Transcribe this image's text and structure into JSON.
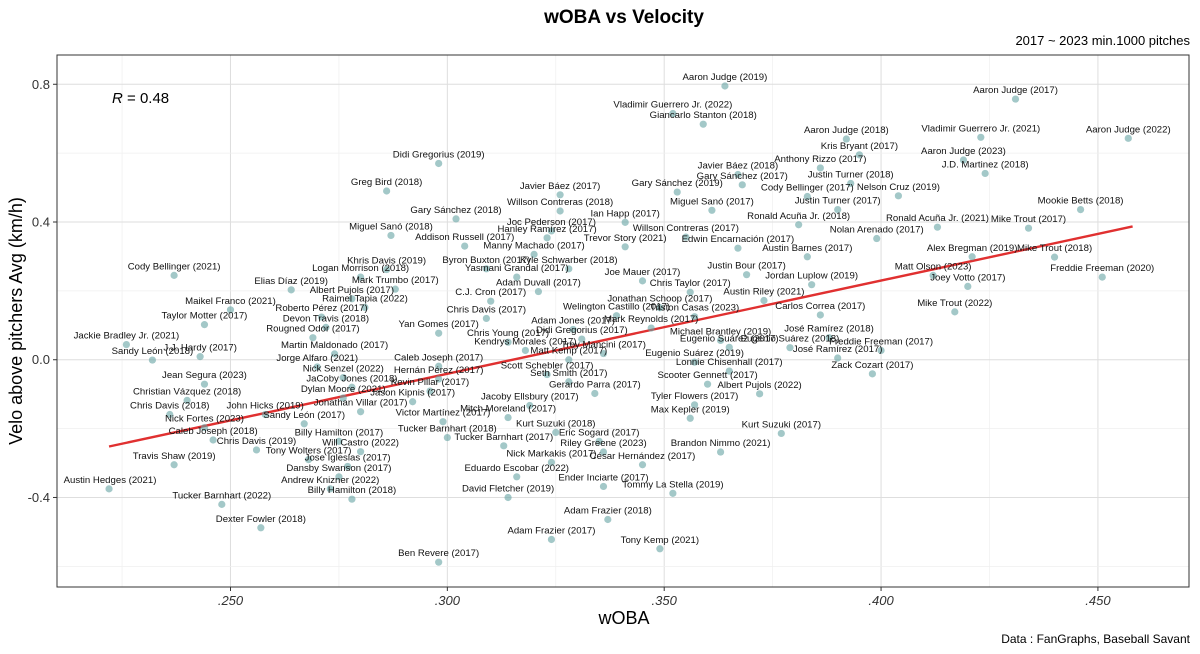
{
  "chart_data": {
    "type": "scatter",
    "title": "wOBA vs Velocity",
    "subtitle": "2017 ~ 2023 min.1000 pitches",
    "caption": "Data : FanGraphs, Baseball Savant",
    "xlabel": "wOBA",
    "ylabel": "Velo above pitchers Avg (km/h)",
    "xlim": [
      0.21,
      0.471
    ],
    "ylim": [
      -0.66,
      0.885
    ],
    "xticks": [
      0.25,
      0.3,
      0.35,
      0.4,
      0.45
    ],
    "xtick_labels": [
      ".250",
      ".300",
      ".350",
      ".400",
      ".450"
    ],
    "yticks": [
      -0.4,
      0.0,
      0.4,
      0.8
    ],
    "ytick_labels": [
      "-0.4",
      "0.0",
      "0.4",
      "0.8"
    ],
    "grid": true,
    "annotation": {
      "text": "R = 0.48",
      "r_symbol": "R",
      "r_value": " = 0.48"
    },
    "trendline": {
      "x": [
        0.222,
        0.458
      ],
      "y": [
        -0.252,
        0.387
      ],
      "color": "#e03030"
    },
    "point_color": "#66a3a3",
    "labeled_points": [
      {
        "label": "Aaron Judge (2019)",
        "x": 0.364,
        "y": 0.795
      },
      {
        "label": "Aaron Judge (2017)",
        "x": 0.431,
        "y": 0.757
      },
      {
        "label": "Vladimir Guerrero Jr. (2022)",
        "x": 0.352,
        "y": 0.715
      },
      {
        "label": "Giancarlo Stanton (2018)",
        "x": 0.359,
        "y": 0.684
      },
      {
        "label": "Aaron Judge (2018)",
        "x": 0.392,
        "y": 0.641
      },
      {
        "label": "Vladimir Guerrero Jr. (2021)",
        "x": 0.423,
        "y": 0.646
      },
      {
        "label": "Aaron Judge (2022)",
        "x": 0.457,
        "y": 0.643
      },
      {
        "label": "Kris Bryant (2017)",
        "x": 0.395,
        "y": 0.595
      },
      {
        "label": "Didi Gregorius (2019)",
        "x": 0.298,
        "y": 0.57
      },
      {
        "label": "Aaron Judge (2023)",
        "x": 0.419,
        "y": 0.58
      },
      {
        "label": "Anthony Rizzo (2017)",
        "x": 0.386,
        "y": 0.557
      },
      {
        "label": "J.D. Martinez (2018)",
        "x": 0.424,
        "y": 0.541
      },
      {
        "label": "Javier Báez (2018)",
        "x": 0.367,
        "y": 0.538
      },
      {
        "label": "Justin Turner (2018)",
        "x": 0.393,
        "y": 0.512
      },
      {
        "label": "Gary Sánchez (2017)",
        "x": 0.368,
        "y": 0.508
      },
      {
        "label": "Greg Bird (2018)",
        "x": 0.286,
        "y": 0.49
      },
      {
        "label": "Gary Sánchez (2019)",
        "x": 0.353,
        "y": 0.487
      },
      {
        "label": "Cody Bellinger (2017)",
        "x": 0.383,
        "y": 0.474
      },
      {
        "label": "Javier Báez (2017)",
        "x": 0.326,
        "y": 0.479
      },
      {
        "label": "Nelson Cruz (2019)",
        "x": 0.404,
        "y": 0.476
      },
      {
        "label": "Justin Turner (2017)",
        "x": 0.39,
        "y": 0.436
      },
      {
        "label": "Willson Contreras (2018)",
        "x": 0.326,
        "y": 0.432
      },
      {
        "label": "Miguel Sanó (2017)",
        "x": 0.361,
        "y": 0.434
      },
      {
        "label": "Mookie Betts (2018)",
        "x": 0.446,
        "y": 0.436
      },
      {
        "label": "Gary Sánchez (2018)",
        "x": 0.302,
        "y": 0.409
      },
      {
        "label": "Ian Happ (2017)",
        "x": 0.341,
        "y": 0.399
      },
      {
        "label": "Ronald Acuña Jr. (2018)",
        "x": 0.381,
        "y": 0.392
      },
      {
        "label": "Ronald Acuña Jr. (2021)",
        "x": 0.413,
        "y": 0.385
      },
      {
        "label": "Mike Trout (2017)",
        "x": 0.434,
        "y": 0.382
      },
      {
        "label": "Joc Pederson (2017)",
        "x": 0.324,
        "y": 0.374
      },
      {
        "label": "Miguel Sanó (2018)",
        "x": 0.287,
        "y": 0.361
      },
      {
        "label": "Willson Contreras (2017)",
        "x": 0.355,
        "y": 0.356
      },
      {
        "label": "Hanley Ramírez (2017)",
        "x": 0.323,
        "y": 0.354
      },
      {
        "label": "Nolan Arenado (2017)",
        "x": 0.399,
        "y": 0.352
      },
      {
        "label": "Addison Russell (2017)",
        "x": 0.304,
        "y": 0.33
      },
      {
        "label": "Trevor Story (2021)",
        "x": 0.341,
        "y": 0.328
      },
      {
        "label": "Edwin Encarnación (2017)",
        "x": 0.367,
        "y": 0.324
      },
      {
        "label": "Austin Barnes (2017)",
        "x": 0.383,
        "y": 0.299
      },
      {
        "label": "Alex Bregman (2019)",
        "x": 0.421,
        "y": 0.299
      },
      {
        "label": "Manny Machado (2017)",
        "x": 0.32,
        "y": 0.306
      },
      {
        "label": "Mike Trout (2018)",
        "x": 0.44,
        "y": 0.298
      },
      {
        "label": "Khris Davis (2019)",
        "x": 0.286,
        "y": 0.262
      },
      {
        "label": "Byron Buxton (2017)",
        "x": 0.309,
        "y": 0.264
      },
      {
        "label": "Kyle Schwarber (2018)",
        "x": 0.328,
        "y": 0.264
      },
      {
        "label": "Justin Bour (2017)",
        "x": 0.369,
        "y": 0.247
      },
      {
        "label": "Cody Bellinger (2021)",
        "x": 0.237,
        "y": 0.245
      },
      {
        "label": "Logan Morrison (2018)",
        "x": 0.28,
        "y": 0.24
      },
      {
        "label": "Yasmani Grandal (2017)",
        "x": 0.316,
        "y": 0.24
      },
      {
        "label": "Matt Olson (2023)",
        "x": 0.412,
        "y": 0.245
      },
      {
        "label": "Freddie Freeman (2020)",
        "x": 0.451,
        "y": 0.24
      },
      {
        "label": "Joe Mauer (2017)",
        "x": 0.345,
        "y": 0.229
      },
      {
        "label": "Jordan Luplow (2019)",
        "x": 0.384,
        "y": 0.218
      },
      {
        "label": "Elias Díaz (2019)",
        "x": 0.264,
        "y": 0.203
      },
      {
        "label": "Mark Trumbo (2017)",
        "x": 0.288,
        "y": 0.205
      },
      {
        "label": "Joey Votto (2017)",
        "x": 0.42,
        "y": 0.213
      },
      {
        "label": "Adam Duvall (2017)",
        "x": 0.321,
        "y": 0.198
      },
      {
        "label": "Chris Taylor (2017)",
        "x": 0.356,
        "y": 0.196
      },
      {
        "label": "Albert Pujols (2017)",
        "x": 0.278,
        "y": 0.177
      },
      {
        "label": "C.J. Cron (2017)",
        "x": 0.31,
        "y": 0.17
      },
      {
        "label": "Austin Riley (2021)",
        "x": 0.373,
        "y": 0.172
      },
      {
        "label": "Maikel Franco (2021)",
        "x": 0.25,
        "y": 0.145
      },
      {
        "label": "Raimel Tapia (2022)",
        "x": 0.281,
        "y": 0.152
      },
      {
        "label": "Jonathan Schoop (2017)",
        "x": 0.349,
        "y": 0.151
      },
      {
        "label": "Roberto Pérez (2017)",
        "x": 0.271,
        "y": 0.124
      },
      {
        "label": "Chris Davis (2017)",
        "x": 0.309,
        "y": 0.12
      },
      {
        "label": "Welington Castillo (2017)",
        "x": 0.339,
        "y": 0.128
      },
      {
        "label": "Triston Casas (2023)",
        "x": 0.357,
        "y": 0.125
      },
      {
        "label": "Carlos Correa (2017)",
        "x": 0.386,
        "y": 0.13
      },
      {
        "label": "Mike Trout (2022)",
        "x": 0.417,
        "y": 0.139
      },
      {
        "label": "Taylor Motter (2017)",
        "x": 0.244,
        "y": 0.102
      },
      {
        "label": "Devon Travis (2018)",
        "x": 0.272,
        "y": 0.094
      },
      {
        "label": "Adam Jones (2017)",
        "x": 0.329,
        "y": 0.088
      },
      {
        "label": "Mark Reynolds (2017)",
        "x": 0.347,
        "y": 0.092
      },
      {
        "label": "Yan Gomes (2017)",
        "x": 0.298,
        "y": 0.077
      },
      {
        "label": "Didi Gregorius (2017)",
        "x": 0.331,
        "y": 0.06
      },
      {
        "label": "Michael Brantley (2019)",
        "x": 0.363,
        "y": 0.056
      },
      {
        "label": "José Ramírez (2018)",
        "x": 0.388,
        "y": 0.064
      },
      {
        "label": "Rougned Odor (2017)",
        "x": 0.269,
        "y": 0.064
      },
      {
        "label": "Chris Young (2017)",
        "x": 0.314,
        "y": 0.051
      },
      {
        "label": "Jackie Bradley Jr. (2021)",
        "x": 0.226,
        "y": 0.044
      },
      {
        "label": "Eugenio Suárez (2017)",
        "x": 0.365,
        "y": 0.036
      },
      {
        "label": "Eugenio Suárez (2018)",
        "x": 0.379,
        "y": 0.035
      },
      {
        "label": "Kendrys Morales (2017)",
        "x": 0.318,
        "y": 0.027
      },
      {
        "label": "Trey Mancini (2017)",
        "x": 0.336,
        "y": 0.018
      },
      {
        "label": "Freddie Freeman (2017)",
        "x": 0.4,
        "y": 0.027
      },
      {
        "label": "Martin Maldonado (2017)",
        "x": 0.274,
        "y": 0.017
      },
      {
        "label": "J.J. Hardy (2017)",
        "x": 0.243,
        "y": 0.009
      },
      {
        "label": "José Ramírez (2017)",
        "x": 0.39,
        "y": 0.005
      },
      {
        "label": "Sandy León (2018)",
        "x": 0.232,
        "y": -0.001
      },
      {
        "label": "Matt Kemp (2017)",
        "x": 0.328,
        "y": 0.0
      },
      {
        "label": "Eugenio Suárez (2019)",
        "x": 0.357,
        "y": -0.007
      },
      {
        "label": "Jorge Alfaro (2021)",
        "x": 0.27,
        "y": -0.021
      },
      {
        "label": "Caleb Joseph (2017)",
        "x": 0.298,
        "y": -0.019
      },
      {
        "label": "Lonnie Chisenhall (2017)",
        "x": 0.365,
        "y": -0.033
      },
      {
        "label": "Zack Cozart (2017)",
        "x": 0.398,
        "y": -0.041
      },
      {
        "label": "Scott Schebler (2017)",
        "x": 0.323,
        "y": -0.043
      },
      {
        "label": "Nick Senzel (2022)",
        "x": 0.276,
        "y": -0.052
      },
      {
        "label": "Hernán Pérez (2017)",
        "x": 0.298,
        "y": -0.056
      },
      {
        "label": "Seth Smith (2017)",
        "x": 0.328,
        "y": -0.064
      },
      {
        "label": "Scooter Gennett (2017)",
        "x": 0.36,
        "y": -0.071
      },
      {
        "label": "Jean Segura (2023)",
        "x": 0.244,
        "y": -0.071
      },
      {
        "label": "JaCoby Jones (2018)",
        "x": 0.278,
        "y": -0.08
      },
      {
        "label": "Kevin Pillar (2017)",
        "x": 0.296,
        "y": -0.091
      },
      {
        "label": "Gerardo Parra (2017)",
        "x": 0.334,
        "y": -0.098
      },
      {
        "label": "Albert Pujols (2022)",
        "x": 0.372,
        "y": -0.099
      },
      {
        "label": "Dylan Moore (2021)",
        "x": 0.276,
        "y": -0.111
      },
      {
        "label": "Christian Vázquez (2018)",
        "x": 0.24,
        "y": -0.118
      },
      {
        "label": "Jason Kipnis (2017)",
        "x": 0.292,
        "y": -0.122
      },
      {
        "label": "Jacoby Ellsbury (2017)",
        "x": 0.319,
        "y": -0.133
      },
      {
        "label": "Tyler Flowers (2017)",
        "x": 0.357,
        "y": -0.131
      },
      {
        "label": "Jonathan Villar (2017)",
        "x": 0.28,
        "y": -0.151
      },
      {
        "label": "Chris Davis (2018)",
        "x": 0.236,
        "y": -0.159
      },
      {
        "label": "John Hicks (2019)",
        "x": 0.258,
        "y": -0.159
      },
      {
        "label": "Mitch Moreland (2017)",
        "x": 0.314,
        "y": -0.168
      },
      {
        "label": "Max Kepler (2019)",
        "x": 0.356,
        "y": -0.17
      },
      {
        "label": "Victor Martínez (2017)",
        "x": 0.299,
        "y": -0.18
      },
      {
        "label": "Sandy León (2017)",
        "x": 0.267,
        "y": -0.186
      },
      {
        "label": "Nick Fortes (2023)",
        "x": 0.244,
        "y": -0.197
      },
      {
        "label": "Kurt Suzuki (2018)",
        "x": 0.325,
        "y": -0.211
      },
      {
        "label": "Kurt Suzuki (2017)",
        "x": 0.377,
        "y": -0.214
      },
      {
        "label": "Tucker Barnhart (2018)",
        "x": 0.3,
        "y": -0.226
      },
      {
        "label": "Caleb Joseph (2018)",
        "x": 0.246,
        "y": -0.233
      },
      {
        "label": "Billy Hamilton (2017)",
        "x": 0.275,
        "y": -0.237
      },
      {
        "label": "Eric Sogard (2017)",
        "x": 0.335,
        "y": -0.237
      },
      {
        "label": "Tucker Barnhart (2017)",
        "x": 0.313,
        "y": -0.25
      },
      {
        "label": "Chris Davis (2019)",
        "x": 0.256,
        "y": -0.262
      },
      {
        "label": "Will Castro (2022)",
        "x": 0.28,
        "y": -0.267
      },
      {
        "label": "Riley Greene (2023)",
        "x": 0.336,
        "y": -0.268
      },
      {
        "label": "Brandon Nimmo (2021)",
        "x": 0.363,
        "y": -0.268
      },
      {
        "label": "Tony Wolters (2017)",
        "x": 0.268,
        "y": -0.29
      },
      {
        "label": "Nick Markakis (2017)",
        "x": 0.324,
        "y": -0.298
      },
      {
        "label": "César Hernández (2017)",
        "x": 0.345,
        "y": -0.305
      },
      {
        "label": "Travis Shaw (2019)",
        "x": 0.237,
        "y": -0.305
      },
      {
        "label": "Jose Iglesias (2017)",
        "x": 0.277,
        "y": -0.31
      },
      {
        "label": "Dansby Swanson (2017)",
        "x": 0.275,
        "y": -0.34
      },
      {
        "label": "Eduardo Escobar (2022)",
        "x": 0.316,
        "y": -0.34
      },
      {
        "label": "Ender Inciarte (2017)",
        "x": 0.336,
        "y": -0.368
      },
      {
        "label": "Austin Hedges (2021)",
        "x": 0.222,
        "y": -0.375
      },
      {
        "label": "Andrew Knizner (2022)",
        "x": 0.273,
        "y": -0.375
      },
      {
        "label": "Tommy La Stella (2019)",
        "x": 0.352,
        "y": -0.388
      },
      {
        "label": "Billy Hamilton (2018)",
        "x": 0.278,
        "y": -0.405
      },
      {
        "label": "David Fletcher (2019)",
        "x": 0.314,
        "y": -0.4
      },
      {
        "label": "Tucker Barnhart (2022)",
        "x": 0.248,
        "y": -0.42
      },
      {
        "label": "Adam Frazier (2018)",
        "x": 0.337,
        "y": -0.464
      },
      {
        "label": "Dexter Fowler (2018)",
        "x": 0.257,
        "y": -0.488
      },
      {
        "label": "Adam Frazier (2017)",
        "x": 0.324,
        "y": -0.522
      },
      {
        "label": "Tony Kemp (2021)",
        "x": 0.349,
        "y": -0.549
      },
      {
        "label": "Ben Revere (2017)",
        "x": 0.298,
        "y": -0.588
      }
    ]
  }
}
